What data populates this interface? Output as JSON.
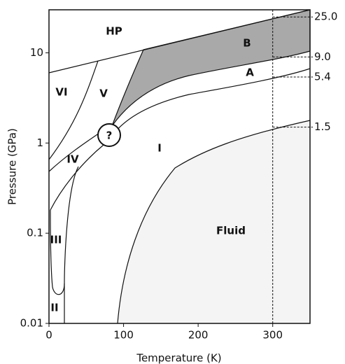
{
  "chart_data": {
    "type": "phase-diagram",
    "x_label": "Temperature (K)",
    "y_label": "Pressure (GPa)",
    "xlim": [
      0,
      350
    ],
    "xticks": [
      0,
      100,
      200,
      300
    ],
    "ylim": [
      0.01,
      30
    ],
    "yticks": [
      0.01,
      0.1,
      1,
      10
    ],
    "y_scale": "log",
    "marker_temperature": 300,
    "pressure_marks": [
      {
        "value": 25,
        "label": "25.0"
      },
      {
        "value": 9,
        "label": "9.0"
      },
      {
        "value": 5.4,
        "label": "5.4"
      },
      {
        "value": 1.5,
        "label": "1.5"
      }
    ],
    "regions": [
      {
        "label": "HP"
      },
      {
        "label": "B"
      },
      {
        "label": "A"
      },
      {
        "label": "VI"
      },
      {
        "label": "V"
      },
      {
        "label": "IV"
      },
      {
        "label": "?"
      },
      {
        "label": "I"
      },
      {
        "label": "III"
      },
      {
        "label": "II"
      },
      {
        "label": "Fluid"
      }
    ]
  }
}
